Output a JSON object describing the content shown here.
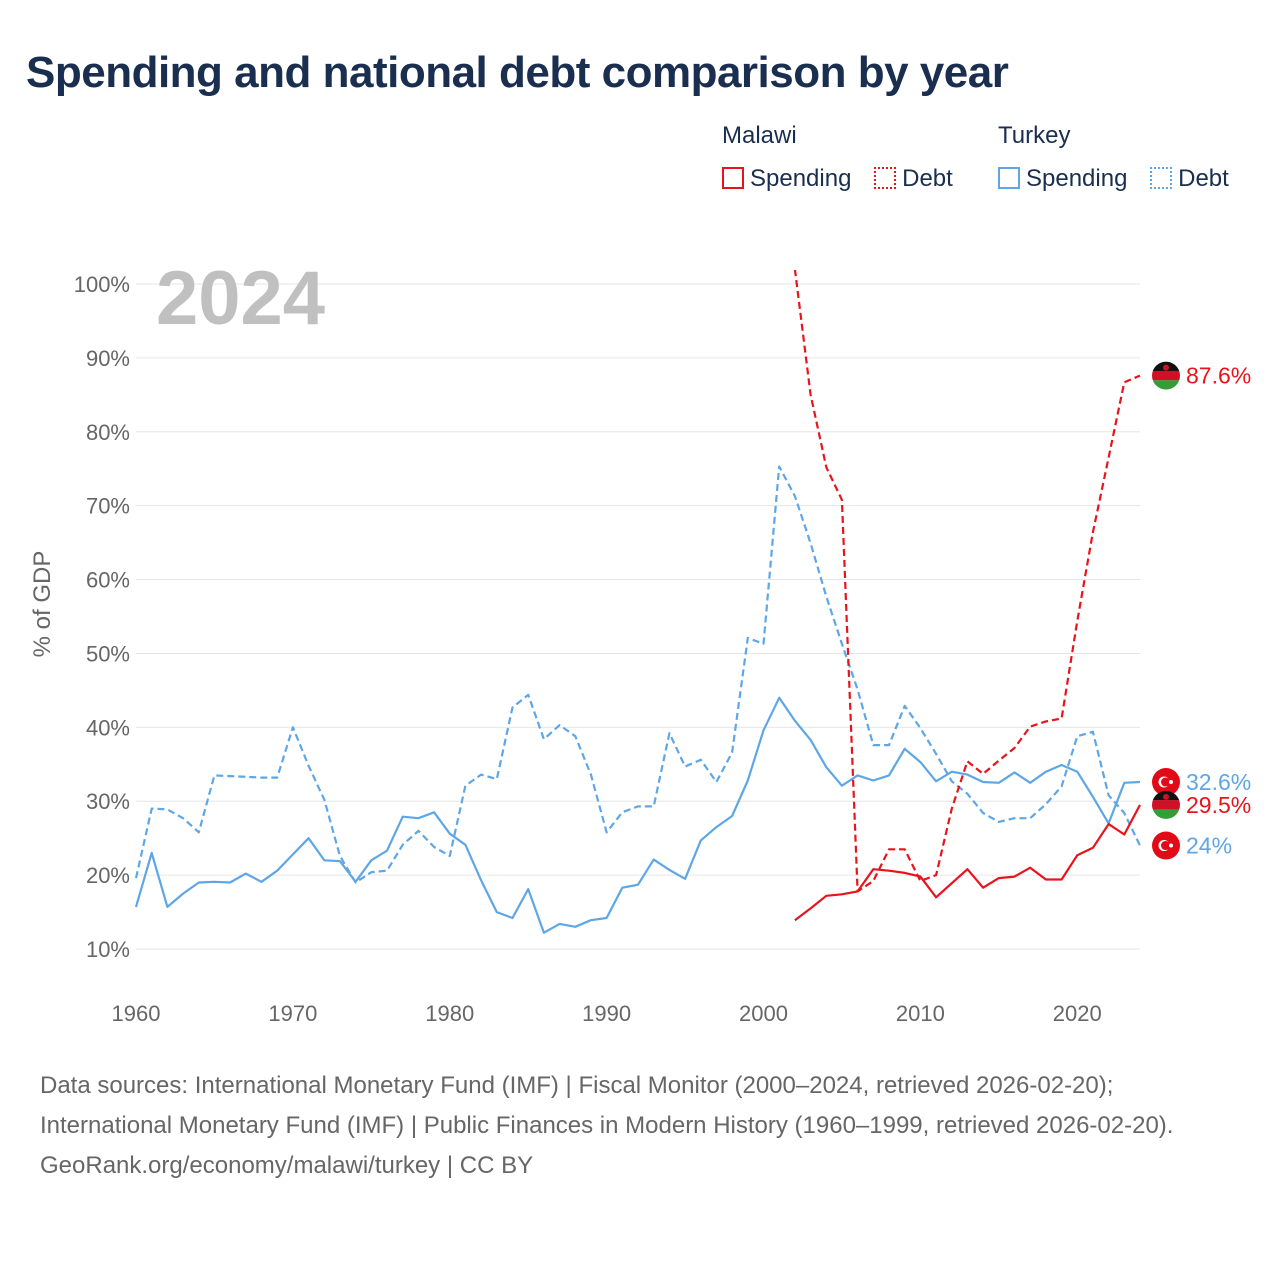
{
  "title": "Spending and national debt comparison by year",
  "legend": {
    "groups": [
      {
        "name": "Malawi",
        "color": "#e8141b",
        "items": [
          {
            "label": "Spending",
            "style": "solid"
          },
          {
            "label": "Debt",
            "style": "dotted"
          }
        ]
      },
      {
        "name": "Turkey",
        "color": "#5ea6e6",
        "items": [
          {
            "label": "Spending",
            "style": "solid"
          },
          {
            "label": "Debt",
            "style": "dotted"
          }
        ]
      }
    ]
  },
  "colors": {
    "malawi": "#e8141b",
    "turkey": "#5ea6e6",
    "grid": "#e6e6e6",
    "axis_text": "#666666",
    "title": "#1a2e4f",
    "year_watermark": "#c0c0c0"
  },
  "footer": {
    "sources": "Data sources: International Monetary Fund (IMF) | Fiscal Monitor (2000–2024, retrieved 2026-02-20); International Monetary Fund (IMF) | Public Finances in Modern History (1960–1999, retrieved 2026-02-20).",
    "credit": "GeoRank.org/economy/malawi/turkey | CC BY"
  },
  "chart_data": {
    "type": "line",
    "year_label": "2024",
    "ylabel": "% of GDP",
    "xlim": [
      1960,
      2024
    ],
    "ylim": [
      10,
      100
    ],
    "x_ticks": [
      1960,
      1970,
      1980,
      1990,
      2000,
      2010,
      2020
    ],
    "y_ticks": [
      10,
      20,
      30,
      40,
      50,
      60,
      70,
      80,
      90,
      100
    ],
    "y_tick_labels": [
      "10%",
      "20%",
      "30%",
      "40%",
      "50%",
      "60%",
      "70%",
      "80%",
      "90%",
      "100%"
    ],
    "series": [
      {
        "name": "Turkey Spending",
        "country": "turkey",
        "style": "solid",
        "end_label": "32.6%",
        "end_value": 32.6,
        "x": [
          1960,
          1961,
          1962,
          1963,
          1964,
          1965,
          1966,
          1967,
          1968,
          1969,
          1970,
          1971,
          1972,
          1973,
          1974,
          1975,
          1976,
          1977,
          1978,
          1979,
          1980,
          1981,
          1982,
          1983,
          1984,
          1985,
          1986,
          1987,
          1988,
          1989,
          1990,
          1991,
          1992,
          1993,
          1994,
          1995,
          1996,
          1997,
          1998,
          1999,
          2000,
          2001,
          2002,
          2003,
          2004,
          2005,
          2006,
          2007,
          2008,
          2009,
          2010,
          2011,
          2012,
          2013,
          2014,
          2015,
          2016,
          2017,
          2018,
          2019,
          2020,
          2021,
          2022,
          2023,
          2024
        ],
        "y": [
          15.7,
          23.0,
          15.7,
          17.5,
          19.0,
          19.1,
          19.0,
          20.2,
          19.1,
          20.6,
          22.8,
          25.0,
          22.0,
          21.9,
          19.1,
          22.0,
          23.3,
          27.9,
          27.7,
          28.5,
          25.6,
          24.1,
          19.3,
          15.0,
          14.2,
          18.1,
          12.2,
          13.4,
          13.0,
          13.9,
          14.2,
          18.3,
          18.7,
          22.1,
          20.7,
          19.5,
          24.7,
          26.5,
          28.0,
          32.8,
          39.6,
          44.0,
          40.9,
          38.3,
          34.6,
          32.1,
          33.5,
          32.8,
          33.5,
          37.1,
          35.3,
          32.7,
          34.0,
          33.6,
          32.6,
          32.5,
          33.9,
          32.5,
          34.0,
          34.9,
          34.0,
          30.6,
          27.0,
          32.5,
          32.6
        ]
      },
      {
        "name": "Turkey Debt",
        "country": "turkey",
        "style": "dashed",
        "end_label": "24%",
        "end_value": 24.0,
        "x": [
          1960,
          1961,
          1962,
          1963,
          1964,
          1965,
          1966,
          1967,
          1968,
          1969,
          1970,
          1971,
          1972,
          1973,
          1974,
          1975,
          1976,
          1977,
          1978,
          1979,
          1980,
          1981,
          1982,
          1983,
          1984,
          1985,
          1986,
          1987,
          1988,
          1989,
          1990,
          1991,
          1992,
          1993,
          1994,
          1995,
          1996,
          1997,
          1998,
          1999,
          2000,
          2001,
          2002,
          2003,
          2004,
          2005,
          2006,
          2007,
          2008,
          2009,
          2010,
          2011,
          2012,
          2013,
          2014,
          2015,
          2016,
          2017,
          2018,
          2019,
          2020,
          2021,
          2022,
          2023,
          2024
        ],
        "y": [
          19.6,
          29.0,
          28.9,
          27.7,
          25.8,
          33.5,
          33.4,
          33.3,
          33.2,
          33.2,
          40.0,
          34.8,
          30.2,
          22.6,
          19.0,
          20.4,
          20.6,
          24.1,
          26.0,
          23.8,
          22.6,
          32.1,
          33.6,
          33.0,
          42.7,
          44.4,
          38.4,
          40.3,
          38.8,
          33.6,
          25.8,
          28.5,
          29.3,
          29.3,
          39.2,
          34.7,
          35.6,
          32.6,
          36.6,
          52.1,
          51.3,
          75.3,
          71.3,
          64.9,
          57.7,
          51.3,
          45.1,
          37.6,
          37.6,
          42.9,
          39.9,
          36.4,
          32.7,
          31.0,
          28.4,
          27.2,
          27.7,
          27.7,
          29.6,
          32.0,
          38.8,
          39.4,
          30.8,
          28.4,
          24.0
        ]
      },
      {
        "name": "Malawi Spending",
        "country": "malawi",
        "style": "solid",
        "end_label": "29.5%",
        "end_value": 29.5,
        "x": [
          2002,
          2003,
          2004,
          2005,
          2006,
          2007,
          2008,
          2009,
          2010,
          2011,
          2012,
          2013,
          2014,
          2015,
          2016,
          2017,
          2018,
          2019,
          2020,
          2021,
          2022,
          2023,
          2024
        ],
        "y": [
          13.9,
          15.5,
          17.2,
          17.4,
          17.8,
          20.8,
          20.6,
          20.3,
          19.8,
          17.0,
          18.9,
          20.8,
          18.3,
          19.6,
          19.8,
          21.0,
          19.4,
          19.4,
          22.7,
          23.7,
          26.9,
          25.5,
          29.5
        ]
      },
      {
        "name": "Malawi Debt",
        "country": "malawi",
        "style": "dashed",
        "end_label": "87.6%",
        "end_value": 87.6,
        "x": [
          2002,
          2003,
          2004,
          2005,
          2006,
          2007,
          2008,
          2009,
          2010,
          2011,
          2012,
          2013,
          2014,
          2015,
          2016,
          2017,
          2018,
          2019,
          2020,
          2021,
          2022,
          2023,
          2024
        ],
        "y": [
          102,
          85,
          75.2,
          70.8,
          17.8,
          19.2,
          23.5,
          23.5,
          19.2,
          20.0,
          29.0,
          35.4,
          33.7,
          35.5,
          37.2,
          40.1,
          40.8,
          41.2,
          54.4,
          66.4,
          76.5,
          86.7,
          87.6
        ]
      }
    ]
  }
}
